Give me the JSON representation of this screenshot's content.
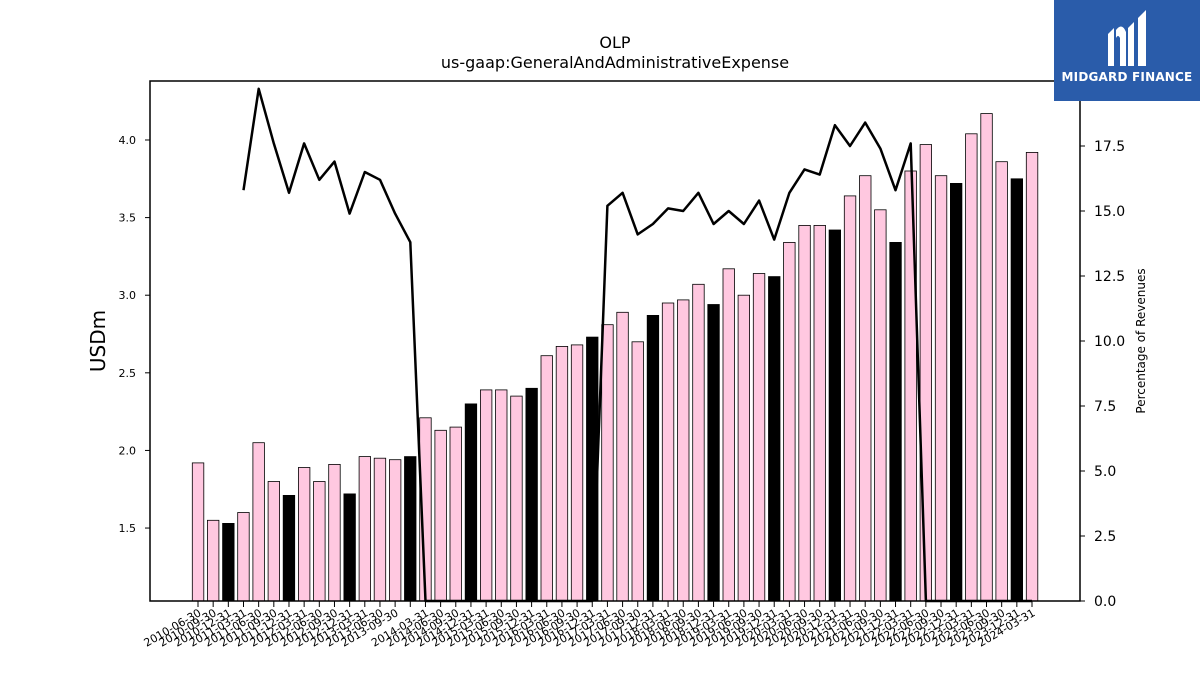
{
  "logo": {
    "text": "MIDGARD FINANCE",
    "icon": "midgard-logo-icon",
    "background": "#2a5caa"
  },
  "chart_data": {
    "type": "bar+line",
    "title": "OLP",
    "subtitle": "us-gaap:GeneralAndAdministrativeExpense",
    "ylabel": "USDm",
    "y2label": "Percentage of Revenues",
    "ylim": [
      1.03,
      4.38
    ],
    "y2lim": [
      0,
      20.0
    ],
    "yticks": [
      "1.5",
      "2.0",
      "2.5",
      "3.0",
      "3.5",
      "4.0"
    ],
    "y2ticks": [
      "0.0",
      "2.5",
      "5.0",
      "7.5",
      "10.0",
      "12.5",
      "15.0",
      "17.5",
      "20.0"
    ],
    "colors": {
      "bar_default": "#ffc8e0",
      "bar_highlight": "#000000",
      "line": "#000000"
    },
    "categories": [
      "2010-06-30",
      "2010-09-30",
      "2010-12-31",
      "2011-03-31",
      "2011-06-30",
      "2011-09-30",
      "2011-12-31",
      "2012-03-31",
      "2012-06-30",
      "2012-09-30",
      "2012-12-31",
      "2013-03-31",
      "2013-06-30",
      "2013-09-30",
      "2013-12-31",
      "2014-03-31",
      "2014-06-30",
      "2014-09-30",
      "2014-12-31",
      "2015-03-31",
      "2015-06-30",
      "2015-09-30",
      "2015-12-31",
      "2016-03-31",
      "2016-06-30",
      "2016-09-30",
      "2016-12-31",
      "2017-03-31",
      "2017-06-30",
      "2017-09-30",
      "2017-12-31",
      "2018-03-31",
      "2018-06-30",
      "2018-09-30",
      "2018-12-31",
      "2019-03-31",
      "2019-06-30",
      "2019-09-30",
      "2019-12-31",
      "2020-03-31",
      "2020-06-30",
      "2020-09-30",
      "2020-12-31",
      "2021-03-31",
      "2021-06-30",
      "2021-09-30",
      "2021-12-31",
      "2022-03-31",
      "2022-06-30",
      "2022-09-30",
      "2022-12-31",
      "2023-03-31",
      "2023-06-30",
      "2023-09-30",
      "2023-12-31",
      "2024-03-31"
    ],
    "visible_tick_labels": [
      "2010-06-30",
      "2010-09-30",
      "2010-12-31",
      "2011-03-31",
      "2011-06-30",
      "2011-09-30",
      "2011-12-31",
      "2012-03-31",
      "2012-06-30",
      "2012-09-30",
      "2012-12-31",
      "2013-03-31",
      "2013-06-30",
      "2013-09-30",
      "2014-03-31",
      "2014-06-30",
      "2014-09-30",
      "2014-12-31",
      "2015-03-31",
      "2015-06-30",
      "2015-09-30",
      "2015-12-31",
      "2016-03-31",
      "2016-06-30",
      "2016-09-30",
      "2016-12-31",
      "2017-03-31",
      "2017-06-30",
      "2017-09-30",
      "2017-12-31",
      "2018-03-31",
      "2018-06-30",
      "2018-09-30",
      "2018-12-31",
      "2019-03-31",
      "2019-06-30",
      "2019-09-30",
      "2019-12-31",
      "2020-03-31",
      "2020-06-30",
      "2020-09-30",
      "2020-12-31",
      "2021-03-31",
      "2021-06-30",
      "2021-09-30",
      "2021-12-31",
      "2022-03-31",
      "2022-06-30",
      "2022-09-30",
      "2022-12-31",
      "2023-03-31",
      "2023-06-30",
      "2023-09-30",
      "2023-12-31",
      "2024-03-31"
    ],
    "bar_values": [
      1.92,
      1.55,
      1.53,
      1.6,
      2.05,
      1.8,
      1.71,
      1.89,
      1.8,
      1.91,
      1.72,
      1.96,
      1.95,
      1.94,
      1.96,
      2.21,
      2.13,
      2.15,
      2.3,
      2.39,
      2.39,
      2.35,
      2.4,
      2.61,
      2.67,
      2.68,
      2.73,
      2.81,
      2.89,
      2.7,
      2.87,
      2.95,
      2.97,
      3.07,
      2.94,
      3.17,
      3.0,
      3.14,
      3.12,
      3.34,
      3.45,
      3.45,
      3.42,
      3.64,
      3.77,
      3.55,
      3.34,
      3.8,
      3.97,
      3.77,
      3.72,
      4.04,
      4.17,
      3.86,
      3.75,
      3.92
    ],
    "highlight_indices": [
      2,
      6,
      10,
      14,
      18,
      22,
      26,
      30,
      34,
      38,
      42,
      46,
      50,
      54
    ],
    "line_values": [
      null,
      null,
      null,
      15.8,
      19.7,
      17.6,
      15.7,
      17.6,
      16.2,
      16.9,
      14.9,
      16.5,
      16.2,
      14.9,
      13.8,
      0,
      0,
      0,
      0,
      0,
      0,
      0,
      0,
      0,
      0,
      0,
      0,
      15.2,
      15.7,
      14.1,
      14.5,
      15.1,
      15.0,
      15.7,
      14.5,
      15.0,
      14.5,
      15.4,
      13.9,
      15.7,
      16.6,
      16.4,
      18.3,
      17.5,
      18.4,
      17.4,
      15.8,
      17.6,
      0,
      0,
      0,
      0,
      0,
      0,
      0,
      0
    ]
  }
}
